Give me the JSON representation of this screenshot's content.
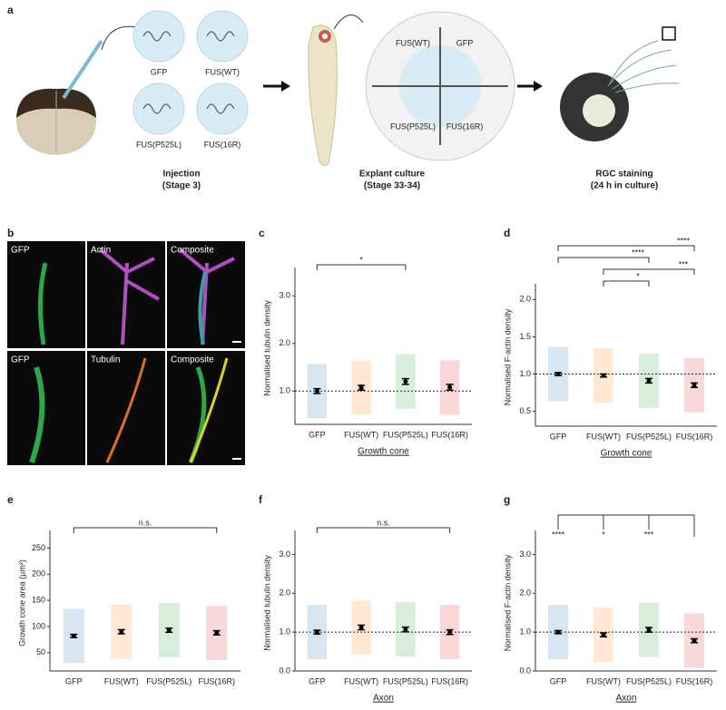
{
  "panel_a": {
    "letter": "a",
    "constructs": [
      "GFP",
      "FUS(WT)",
      "FUS(P525L)",
      "FUS(16R)"
    ],
    "dish_labels": [
      "FUS(WT)",
      "GFP",
      "FUS(P525L)",
      "FUS(16R)"
    ],
    "steps": [
      {
        "title": "Injection",
        "stage": "(Stage 3)"
      },
      {
        "title": "Explant culture",
        "stage": "(Stage 33-34)"
      },
      {
        "title": "RGC staining",
        "stage": "(24 h in culture)"
      }
    ]
  },
  "panel_b": {
    "letter": "b",
    "rows": [
      [
        "GFP",
        "Actin",
        "Composite"
      ],
      [
        "GFP",
        "Tubulin",
        "Composite"
      ]
    ]
  },
  "chart_data": [
    {
      "type": "strip",
      "panel": "c",
      "ylabel": "Normalised tubulin density",
      "xlabel": "Growth cone",
      "categories": [
        "GFP",
        "FUS(WT)",
        "FUS(P525L)",
        "FUS(16R)"
      ],
      "colors": [
        "#1f77b4",
        "#ff7f0e",
        "#2ca02c",
        "#d62728"
      ],
      "values": [
        1.0,
        1.07,
        1.2,
        1.08
      ],
      "errors": [
        0.05,
        0.05,
        0.06,
        0.06
      ],
      "reference_line": 1,
      "ylim": [
        0.3,
        3.5
      ],
      "yticks": [
        {
          "value": 1,
          "label": "1.0"
        },
        {
          "value": 2,
          "label": "2.0"
        },
        {
          "value": 3,
          "label": "3.0"
        }
      ],
      "annotations": [
        {
          "text": "*",
          "between": [
            "GFP",
            "FUS(P525L)"
          ]
        }
      ]
    },
    {
      "type": "strip",
      "panel": "d",
      "ylabel": "Normalised F-actin density",
      "xlabel": "Growth cone",
      "categories": [
        "GFP",
        "FUS(WT)",
        "FUS(P525L)",
        "FUS(16R)"
      ],
      "colors": [
        "#1f77b4",
        "#ff7f0e",
        "#2ca02c",
        "#d62728"
      ],
      "values": [
        1.0,
        0.98,
        0.91,
        0.85
      ],
      "errors": [
        0.02,
        0.02,
        0.03,
        0.03
      ],
      "reference_line": 1,
      "ylim": [
        0.3,
        2.15
      ],
      "yticks": [
        0.5,
        {
          "value": 1,
          "label": "1.0"
        },
        1.5,
        {
          "value": 2,
          "label": "2.0"
        }
      ],
      "annotations": [
        {
          "text": "****",
          "between": [
            "GFP",
            "FUS(16R)"
          ]
        },
        {
          "text": "****",
          "between": [
            "GFP",
            "FUS(P525L)"
          ]
        },
        {
          "text": "***",
          "between": [
            "FUS(WT)",
            "FUS(16R)"
          ]
        },
        {
          "text": "*",
          "between": [
            "FUS(WT)",
            "FUS(P525L)"
          ]
        }
      ]
    },
    {
      "type": "strip",
      "panel": "e",
      "ylabel": "Growth cone area (µm²)",
      "categories": [
        "GFP",
        "FUS(WT)",
        "FUS(P525L)",
        "FUS(16R)"
      ],
      "colors": [
        "#1f77b4",
        "#ff7f0e",
        "#2ca02c",
        "#d62728"
      ],
      "values": [
        82,
        90,
        93,
        88
      ],
      "errors": [
        3,
        4,
        4,
        4
      ],
      "ylim": [
        15,
        275
      ],
      "yticks": [
        50,
        100,
        150,
        200,
        250
      ],
      "annotations": [
        {
          "text": "n.s.",
          "between": [
            "GFP",
            "FUS(16R)"
          ]
        }
      ]
    },
    {
      "type": "strip",
      "panel": "f",
      "ylabel": "Normalised tubulin density",
      "xlabel": "Axon",
      "categories": [
        "GFP",
        "FUS(WT)",
        "FUS(P525L)",
        "FUS(16R)"
      ],
      "colors": [
        "#1f77b4",
        "#ff7f0e",
        "#2ca02c",
        "#d62728"
      ],
      "values": [
        1.0,
        1.12,
        1.07,
        1.0
      ],
      "errors": [
        0.05,
        0.06,
        0.06,
        0.06
      ],
      "reference_line": 1,
      "ylim": [
        0,
        3.5
      ],
      "yticks": [
        {
          "value": 0,
          "label": "0.0"
        },
        {
          "value": 1,
          "label": "1.0"
        },
        {
          "value": 2,
          "label": "2.0"
        },
        {
          "value": 3,
          "label": "3.0"
        }
      ],
      "annotations": [
        {
          "text": "n.s.",
          "between": [
            "GFP",
            "FUS(16R)"
          ]
        }
      ]
    },
    {
      "type": "strip",
      "panel": "g",
      "ylabel": "Normalised F-actin density",
      "xlabel": "Axon",
      "categories": [
        "GFP",
        "FUS(WT)",
        "FUS(P525L)",
        "FUS(16R)"
      ],
      "colors": [
        "#1f77b4",
        "#ff7f0e",
        "#2ca02c",
        "#d62728"
      ],
      "values": [
        1.0,
        0.93,
        1.06,
        0.78
      ],
      "errors": [
        0.04,
        0.05,
        0.06,
        0.05
      ],
      "reference_line": 1,
      "ylim": [
        0,
        3.5
      ],
      "yticks": [
        {
          "value": 0,
          "label": "0.0"
        },
        {
          "value": 1,
          "label": "1.0"
        },
        {
          "value": 2,
          "label": "2.0"
        },
        {
          "value": 3,
          "label": "3.0"
        }
      ],
      "annotations": [
        {
          "text": "****",
          "over": "GFP"
        },
        {
          "text": "*",
          "over": "FUS(WT)"
        },
        {
          "text": "***",
          "over": "FUS(P525L)"
        }
      ]
    }
  ]
}
